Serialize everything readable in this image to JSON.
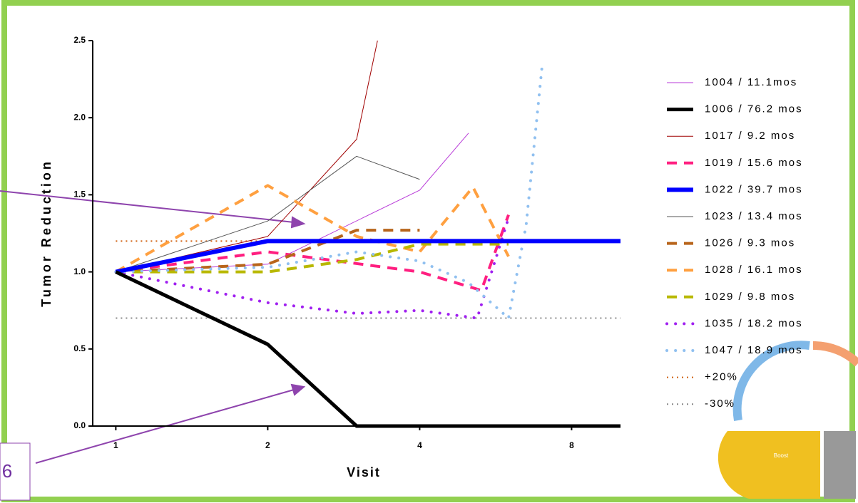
{
  "chart_data": {
    "type": "line",
    "x_label": "Visit",
    "y_label": "Tumor Reduction",
    "xscale": "log2",
    "xlim": [
      0.9,
      10
    ],
    "xticks": [
      1,
      2,
      4,
      8
    ],
    "ylim": [
      0,
      2.5
    ],
    "yticks": [
      {
        "value": 0,
        "label": "0.0"
      },
      0.5,
      {
        "value": 1,
        "label": "1.0"
      },
      1.5,
      {
        "value": 2,
        "label": "2.0"
      },
      2.5
    ],
    "legend": "right",
    "series": [
      {
        "name": "1004 / 11.1mos",
        "color": "#b83ad8",
        "style": "thin",
        "x": [
          1,
          2,
          4,
          5.0
        ],
        "values": [
          1.0,
          1.05,
          1.53,
          1.9
        ]
      },
      {
        "name": "1006 / 76.2 mos",
        "color": "#000000",
        "style": "bold",
        "x": [
          1,
          2,
          3,
          10
        ],
        "values": [
          1.0,
          0.53,
          0,
          0
        ]
      },
      {
        "name": "1017 / 9.2 mos",
        "color": "#a00000",
        "style": "thin",
        "x": [
          1,
          2,
          3,
          3.3
        ],
        "values": [
          1.0,
          1.23,
          1.86,
          2.5
        ]
      },
      {
        "name": "1019 / 15.6 mos",
        "color": "#ff1f80",
        "style": "dashed",
        "x": [
          1,
          2,
          4,
          5.3,
          6
        ],
        "values": [
          1.0,
          1.13,
          1.0,
          0.88,
          1.37
        ]
      },
      {
        "name": "1022 / 39.7 mos",
        "color": "#0000ff",
        "style": "heavy",
        "x": [
          1,
          2,
          10
        ],
        "values": [
          1.0,
          1.2,
          1.2
        ]
      },
      {
        "name": "1023 / 13.4 mos",
        "color": "#555555",
        "style": "thin",
        "x": [
          1,
          2,
          3,
          4
        ],
        "values": [
          1.0,
          1.33,
          1.75,
          1.6
        ]
      },
      {
        "name": "1026 / 9.3 mos",
        "color": "#b8651b",
        "style": "dashed",
        "x": [
          1,
          2,
          3,
          4
        ],
        "values": [
          1.0,
          1.05,
          1.27,
          1.27
        ]
      },
      {
        "name": "1028 / 16.1 mos",
        "color": "#ffa040",
        "style": "dashed",
        "x": [
          1,
          2,
          3,
          4,
          5.1,
          6
        ],
        "values": [
          1.0,
          1.56,
          1.23,
          1.13,
          1.55,
          1.1
        ]
      },
      {
        "name": "1029 / 9.8 mos",
        "color": "#b8b800",
        "style": "dashed",
        "x": [
          1,
          2,
          3,
          4,
          6
        ],
        "values": [
          1.0,
          1.0,
          1.08,
          1.18,
          1.18
        ]
      },
      {
        "name": "1035 / 18.2 mos",
        "color": "#a020f0",
        "style": "dotted",
        "x": [
          1,
          2,
          3,
          4,
          5.2,
          6
        ],
        "values": [
          1.0,
          0.8,
          0.73,
          0.75,
          0.7,
          1.35
        ]
      },
      {
        "name": "1047 / 18.9 mos",
        "color": "#90c0f0",
        "style": "dotted",
        "x": [
          1,
          2,
          3,
          4,
          5,
          6,
          6.5,
          7
        ],
        "values": [
          1.0,
          1.03,
          1.13,
          1.07,
          0.93,
          0.7,
          1.3,
          2.35
        ]
      },
      {
        "name": "+20%",
        "color": "#d06010",
        "style": "fine-dotted",
        "x": [
          1,
          2.1
        ],
        "values": [
          1.2,
          1.2
        ]
      },
      {
        "name": "-30%",
        "color": "#888888",
        "style": "fine-dotted",
        "x": [
          1,
          10
        ],
        "values": [
          0.7,
          0.7
        ]
      }
    ]
  },
  "slide_number": "6",
  "graphic_label": "Boost"
}
